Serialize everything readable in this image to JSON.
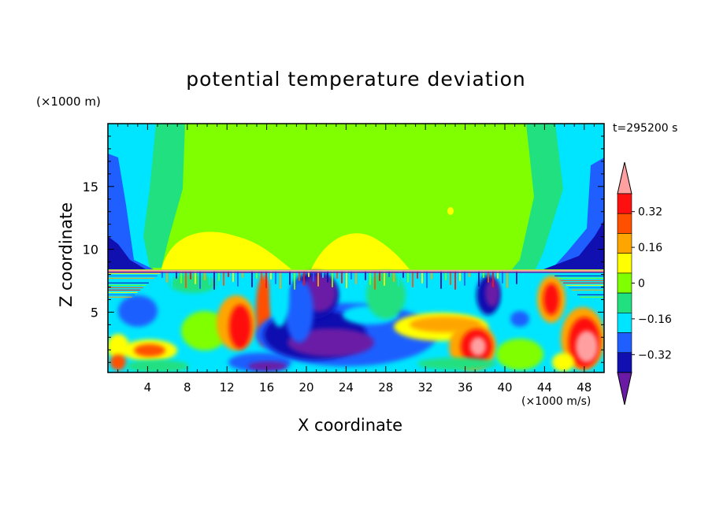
{
  "chart_data": {
    "type": "heatmap",
    "title": "potential temperature deviation",
    "xlabel": "X coordinate",
    "ylabel": "Z coordinate",
    "x_unit": "(×1000 m/s)",
    "y_unit": "(×1000 m)",
    "time_label": "t=295200 s",
    "xlim": [
      0,
      50
    ],
    "ylim": [
      0.2,
      20
    ],
    "x_ticks": [
      4,
      8,
      12,
      16,
      20,
      24,
      28,
      32,
      36,
      40,
      44,
      48
    ],
    "y_ticks": [
      5,
      10,
      15
    ],
    "colorbar": {
      "levels": [
        -0.4,
        -0.32,
        -0.24,
        -0.16,
        -0.08,
        0,
        0.08,
        0.16,
        0.24,
        0.32,
        0.4
      ],
      "labeled_values": [
        0.32,
        0.16,
        0,
        -0.16,
        -0.32
      ],
      "labels": [
        "0.32",
        "0.16",
        "0",
        "−0.16",
        "−0.32"
      ],
      "colors": [
        "#6b1aa6",
        "#1010b0",
        "#1f5fff",
        "#00e5ff",
        "#20e080",
        "#80ff00",
        "#ffff00",
        "#ffa500",
        "#ff5000",
        "#ff1010",
        "#ffa0a0"
      ],
      "extend": "both"
    },
    "regions": [
      {
        "value": 0.0,
        "desc": "upper layer near zero",
        "x": [
          6,
          41
        ],
        "z": [
          8.3,
          20
        ]
      },
      {
        "value": 0.1,
        "desc": "warm dome",
        "x": [
          6,
          19
        ],
        "z": [
          8.3,
          11.5
        ]
      },
      {
        "value": 0.1,
        "desc": "warm dome",
        "x": [
          24,
          32
        ],
        "z": [
          8.3,
          11
        ]
      },
      {
        "value": -0.4,
        "desc": "cold core",
        "x": [
          18,
          24
        ],
        "z": [
          5.5,
          7.5
        ]
      },
      {
        "value": -0.36,
        "desc": "cold band",
        "x": [
          16,
          34
        ],
        "z": [
          1.2,
          4
        ]
      },
      {
        "value": 0.4,
        "desc": "warm core",
        "x": [
          46,
          48
        ],
        "z": [
          1.3,
          3
        ]
      },
      {
        "value": 0.4,
        "desc": "warm core",
        "x": [
          36,
          38
        ],
        "z": [
          1.8,
          3
        ]
      }
    ]
  },
  "colors": {
    "background": "#ffffff",
    "axis": "#000000"
  }
}
